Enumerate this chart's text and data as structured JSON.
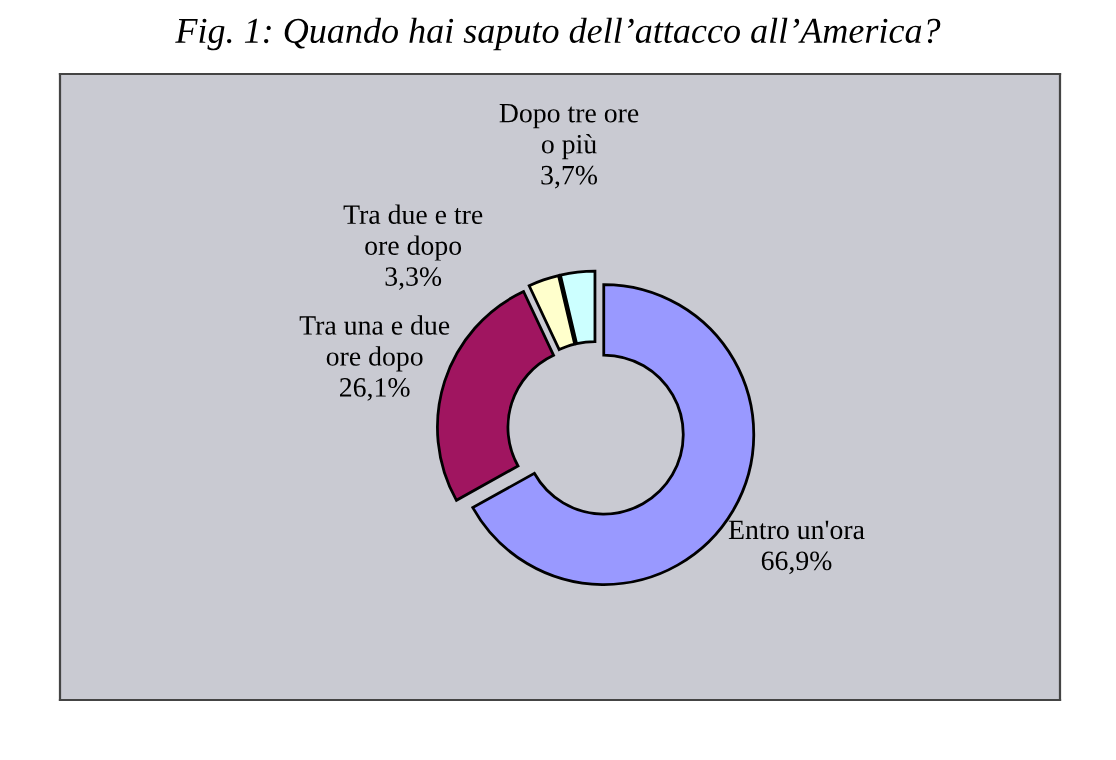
{
  "chart_data": {
    "type": "donut",
    "title": "Fig. 1: Quando hai saputo dell’attacco all’America?",
    "categories": [
      "Entro un'ora",
      "Tra una e due ore dopo",
      "Tra due e tre ore dopo",
      "Dopo tre ore o più"
    ],
    "values": [
      66.9,
      26.1,
      3.3,
      3.7
    ],
    "value_labels": [
      "66,9%",
      "26,1%",
      "3,3%",
      "3,7%"
    ],
    "colors": [
      "#9999ff",
      "#a01560",
      "#ffffcc",
      "#ccffff"
    ],
    "legend": false
  }
}
